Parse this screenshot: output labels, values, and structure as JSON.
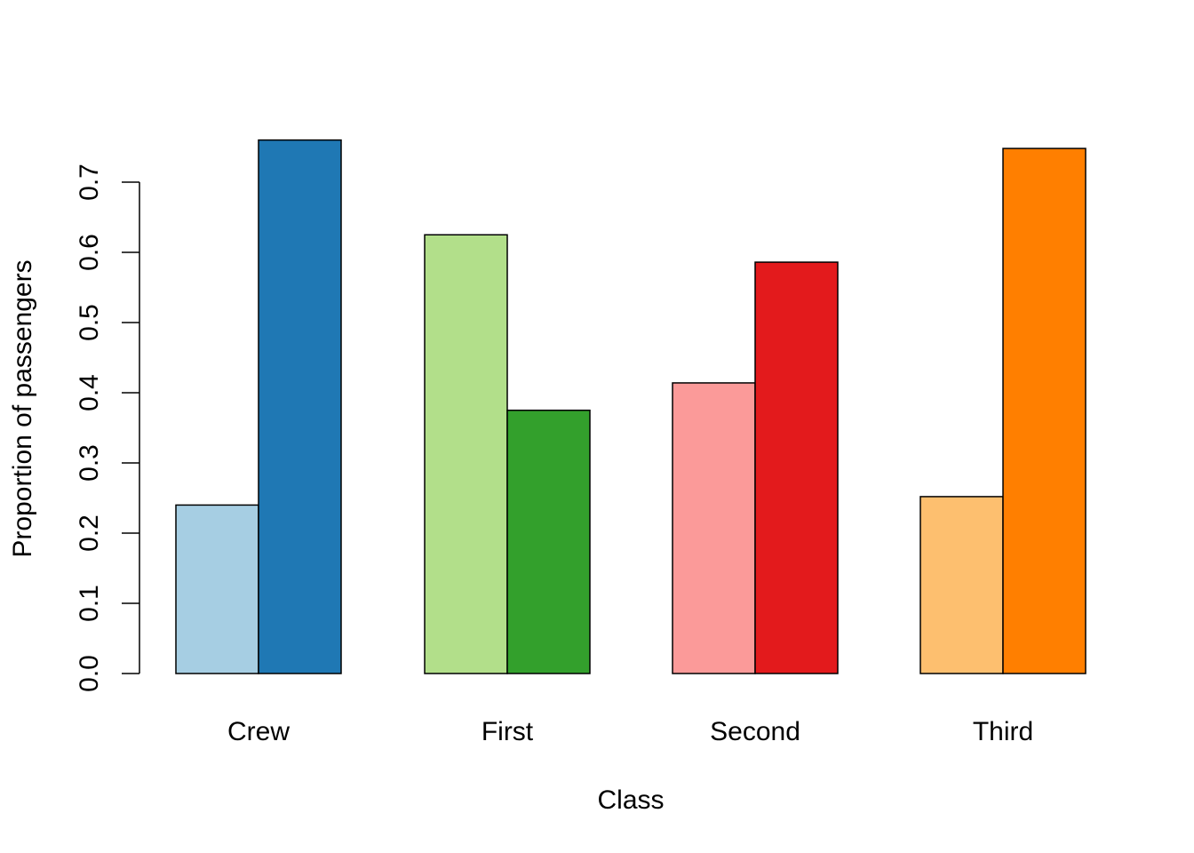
{
  "chart_data": {
    "type": "bar",
    "layout": "grouped",
    "title": "",
    "xlabel": "Class",
    "ylabel": "Proportion of passengers",
    "categories": [
      "Crew",
      "First",
      "Second",
      "Third"
    ],
    "groups": [
      {
        "category": "Crew",
        "values": [
          0.24,
          0.76
        ],
        "colors": [
          "#A6CEE3",
          "#1F78B4"
        ]
      },
      {
        "category": "First",
        "values": [
          0.625,
          0.375
        ],
        "colors": [
          "#B2DF8A",
          "#33A02C"
        ]
      },
      {
        "category": "Second",
        "values": [
          0.414,
          0.586
        ],
        "colors": [
          "#FB9A99",
          "#E31A1C"
        ]
      },
      {
        "category": "Third",
        "values": [
          0.252,
          0.748
        ],
        "colors": [
          "#FDBF6F",
          "#FF7F00"
        ]
      }
    ],
    "yticks": [
      0.0,
      0.1,
      0.2,
      0.3,
      0.4,
      0.5,
      0.6,
      0.7
    ],
    "ytick_labels": [
      "0.0",
      "0.1",
      "0.2",
      "0.3",
      "0.4",
      "0.5",
      "0.6",
      "0.7"
    ],
    "ylim": [
      0,
      0.76
    ],
    "grid": false,
    "legend": "none"
  }
}
